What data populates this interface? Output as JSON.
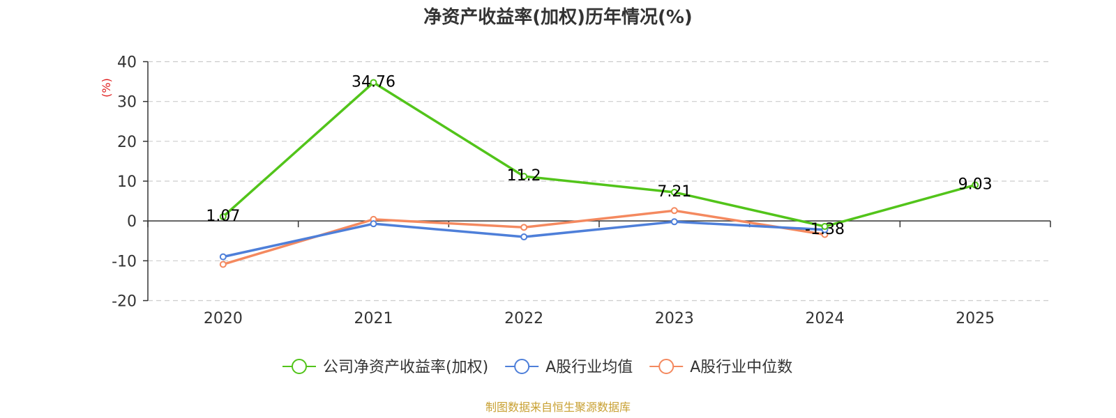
{
  "chart_data": {
    "type": "line",
    "title": "净资产收益率(加权)历年情况(%)",
    "ylabel": "(%)",
    "categories": [
      "2020",
      "2021",
      "2022",
      "2023",
      "2024",
      "2025"
    ],
    "ylim": [
      -20,
      40
    ],
    "yticks": [
      40,
      30,
      20,
      10,
      0,
      -10,
      -20
    ],
    "grid": true,
    "legend_position": "bottom",
    "series": [
      {
        "name": "公司净资产收益率(加权)",
        "color": "#52c41a",
        "values": [
          1.07,
          34.76,
          11.2,
          7.21,
          -1.38,
          9.03
        ],
        "labels": [
          "1.07",
          "34.76",
          "11.2",
          "7.21",
          "-1.38",
          "9.03"
        ]
      },
      {
        "name": "A股行业均值",
        "color": "#4e7fd9",
        "values": [
          -9.0,
          -0.7,
          -4.0,
          -0.2,
          -2.2,
          null
        ]
      },
      {
        "name": "A股行业中位数",
        "color": "#f4895f",
        "values": [
          -10.9,
          0.4,
          -1.6,
          2.6,
          -3.4,
          null
        ]
      }
    ]
  },
  "source": {
    "text": "制图数据来自恒生聚源数据库",
    "color": "#c8a032"
  },
  "ylabel_color": "#e02020"
}
